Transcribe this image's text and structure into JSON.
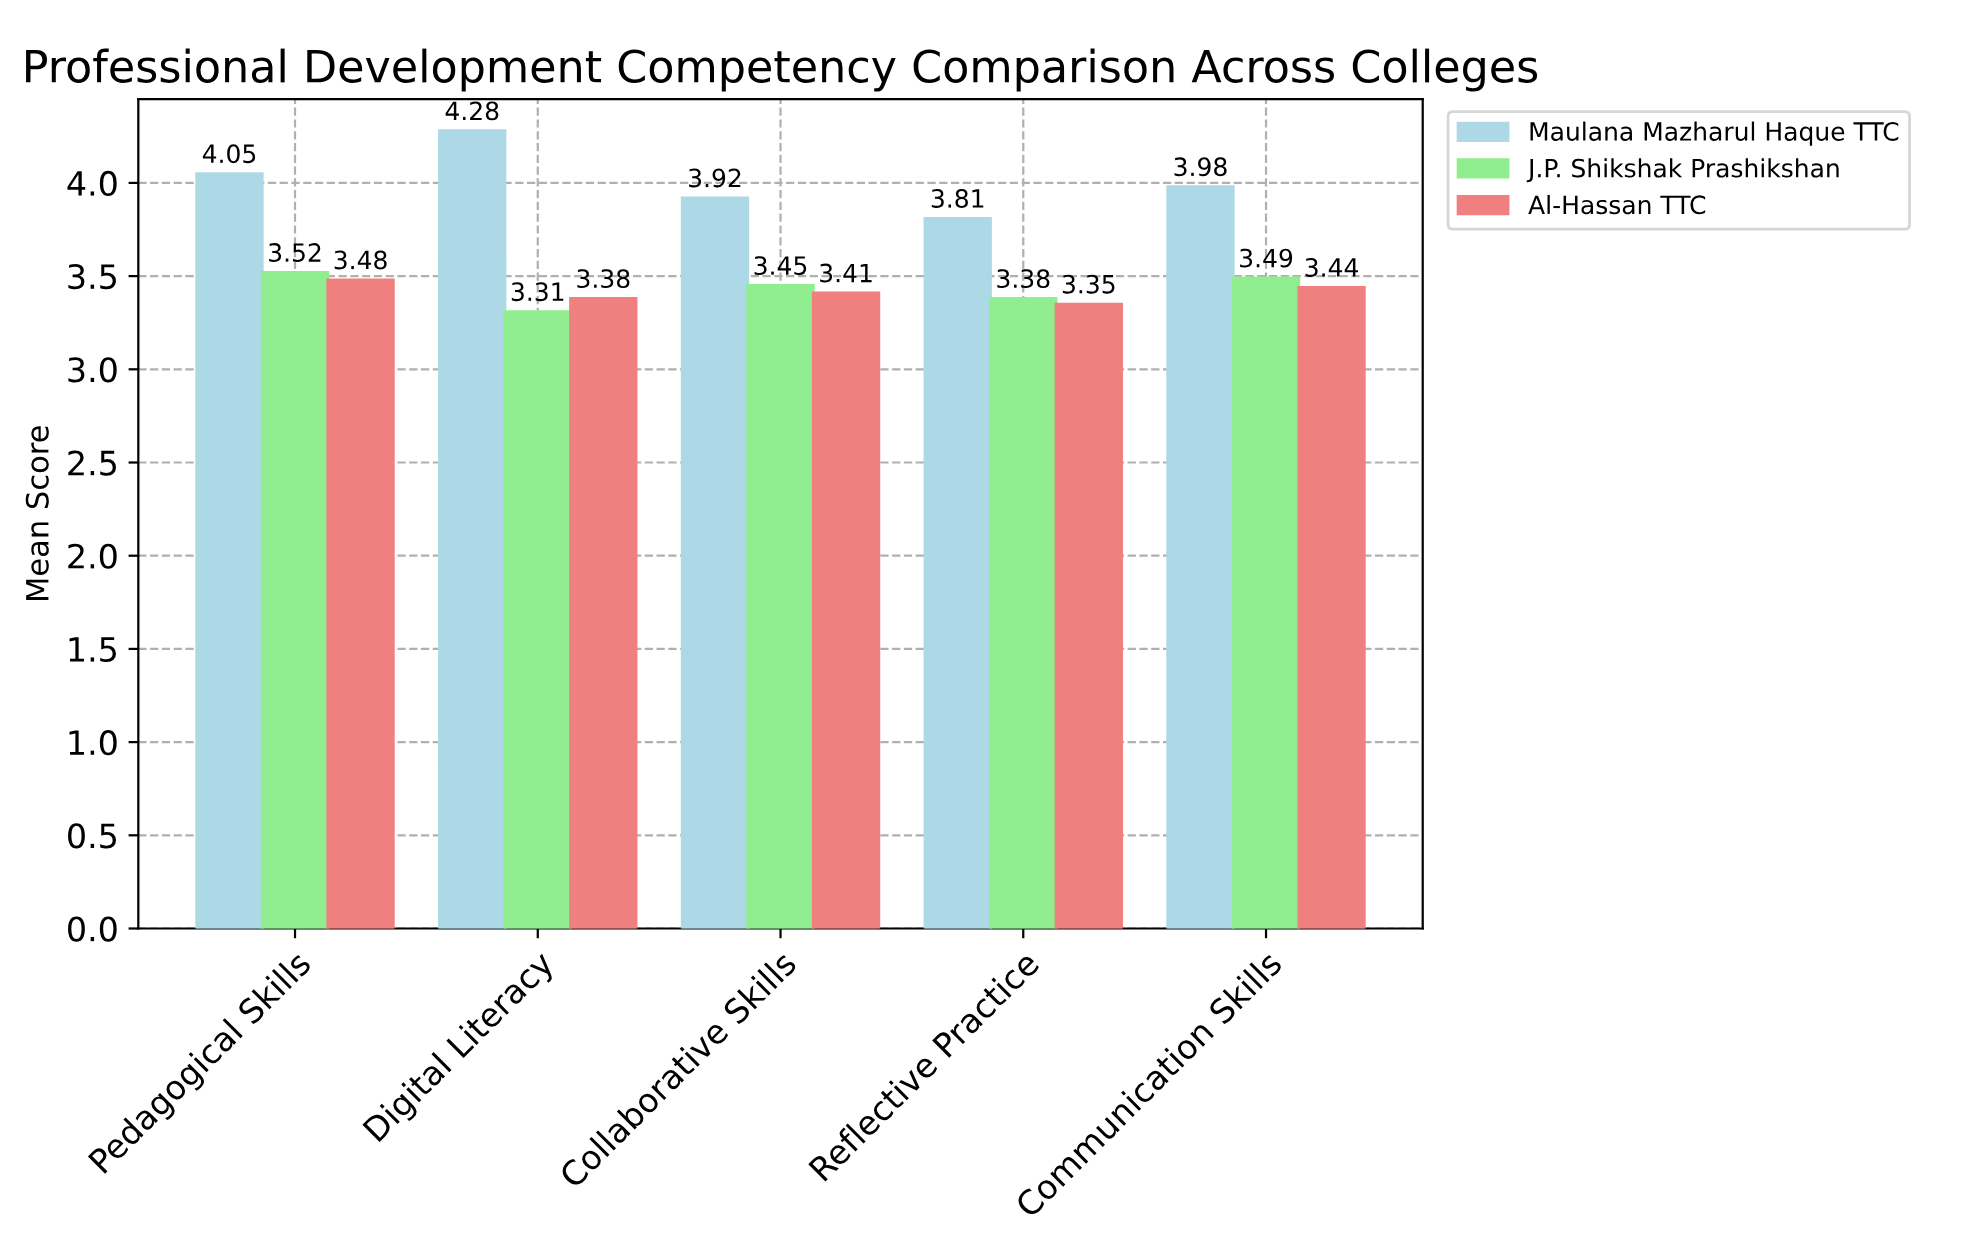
{
  "chart_data": {
    "type": "bar",
    "title": "Professional Development Competency Comparison Across Colleges",
    "ylabel": "Mean Score",
    "categories": [
      "Pedagogical Skills",
      "Digital Literacy",
      "Collaborative Skills",
      "Reflective Practice",
      "Communication Skills"
    ],
    "series": [
      {
        "name": "Maulana Mazharul Haque TTC",
        "color": "#add8e6",
        "values": [
          4.05,
          4.28,
          3.92,
          3.81,
          3.98
        ]
      },
      {
        "name": "J.P. Shikshak Prashikshan",
        "color": "#90ee90",
        "values": [
          3.52,
          3.31,
          3.45,
          3.38,
          3.49
        ]
      },
      {
        "name": "Al-Hassan TTC",
        "color": "#f08080",
        "values": [
          3.48,
          3.38,
          3.41,
          3.35,
          3.44
        ]
      }
    ],
    "ylim": [
      0,
      4.45
    ],
    "yticks": [
      {
        "value": 0,
        "label": "0.0"
      },
      0.5,
      {
        "value": 1,
        "label": "1.0"
      },
      1.5,
      {
        "value": 2,
        "label": "2.0"
      },
      2.5,
      {
        "value": 3,
        "label": "3.0"
      },
      3.5,
      {
        "value": 4,
        "label": "4.0"
      }
    ],
    "grid": true,
    "legend": "top right",
    "data_labels": true
  }
}
